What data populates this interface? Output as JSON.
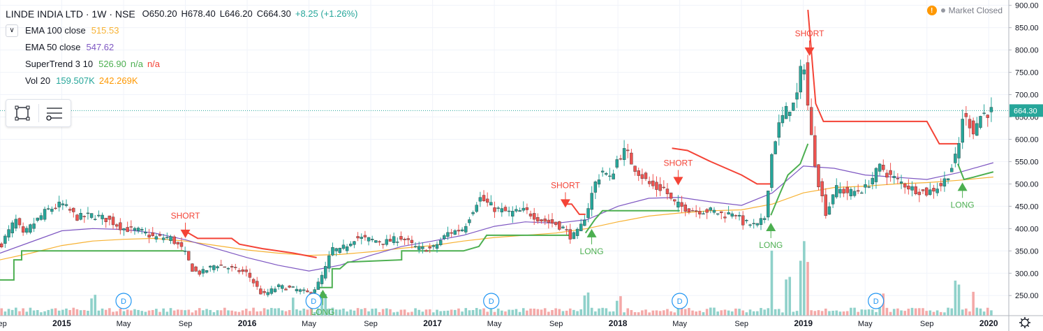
{
  "header": {
    "title": "LINDE INDIA LTD · 1W · NSE",
    "open": "O650.20",
    "high": "H678.40",
    "low": "L646.20",
    "close": "C664.30",
    "change": "+8.25 (+1.26%)",
    "market_status": "Market Closed"
  },
  "indicators": [
    {
      "label": "EMA 100 close",
      "values": [
        "515.53"
      ],
      "colors": [
        "#f7b233"
      ]
    },
    {
      "label": "EMA 50 close",
      "values": [
        "547.62"
      ],
      "colors": [
        "#7e57c2"
      ]
    },
    {
      "label": "SuperTrend 3 10",
      "values": [
        "526.90",
        "n/a",
        "n/a"
      ],
      "colors": [
        "#4caf50",
        "#4caf50",
        "#f44336"
      ]
    },
    {
      "label": "Vol 20",
      "values": [
        "159.507K",
        "242.269K"
      ],
      "colors": [
        "#26a69a",
        "#ff9800"
      ]
    }
  ],
  "colors": {
    "up": "#26a69a",
    "down": "#ef5350",
    "ema100": "#f7b233",
    "ema50": "#7e57c2",
    "st_up": "#4caf50",
    "st_down": "#f44336",
    "vol_up": "#8fd1ca",
    "vol_down": "#f4a9a8",
    "grid": "#f0f3fa"
  },
  "chart_data": {
    "type": "candlestick",
    "y_axis_ticks": [
      "900.00",
      "850.00",
      "800.00",
      "750.00",
      "700.00",
      "650.00",
      "600.00",
      "550.00",
      "500.00",
      "450.00",
      "400.00",
      "350.00",
      "300.00",
      "250.00"
    ],
    "ylim": [
      205,
      912
    ],
    "last_price_label": "664.30",
    "last_price": 664.3,
    "x_axis_labels": [
      {
        "t": 0,
        "label": "Sep"
      },
      {
        "t": 4,
        "label": "2015"
      },
      {
        "t": 8,
        "label": "May"
      },
      {
        "t": 12,
        "label": "Sep"
      },
      {
        "t": 16,
        "label": "2016"
      },
      {
        "t": 20,
        "label": "May"
      },
      {
        "t": 24,
        "label": "Sep"
      },
      {
        "t": 28,
        "label": "2017"
      },
      {
        "t": 32,
        "label": "May"
      },
      {
        "t": 36,
        "label": "Sep"
      },
      {
        "t": 40,
        "label": "2018"
      },
      {
        "t": 44,
        "label": "May"
      },
      {
        "t": 48,
        "label": "Sep"
      },
      {
        "t": 52,
        "label": "2019"
      },
      {
        "t": 56,
        "label": "May"
      },
      {
        "t": 60,
        "label": "Sep"
      },
      {
        "t": 64,
        "label": "2020"
      }
    ],
    "t_range": [
      0,
      65.3
    ],
    "price_anchors": [
      [
        0,
        360
      ],
      [
        0.5,
        390
      ],
      [
        1,
        420
      ],
      [
        1.5,
        385
      ],
      [
        2,
        405
      ],
      [
        3,
        440
      ],
      [
        4,
        455
      ],
      [
        5,
        425
      ],
      [
        6,
        430
      ],
      [
        7,
        420
      ],
      [
        8,
        400
      ],
      [
        9,
        395
      ],
      [
        10,
        380
      ],
      [
        11,
        380
      ],
      [
        11.9,
        350
      ],
      [
        12.5,
        305
      ],
      [
        13,
        300
      ],
      [
        14,
        320
      ],
      [
        15,
        310
      ],
      [
        16,
        300
      ],
      [
        17,
        250
      ],
      [
        18,
        270
      ],
      [
        19,
        265
      ],
      [
        20,
        255
      ],
      [
        20.5,
        270
      ],
      [
        21,
        305
      ],
      [
        21.5,
        355
      ],
      [
        22,
        350
      ],
      [
        23,
        380
      ],
      [
        24,
        375
      ],
      [
        25,
        370
      ],
      [
        26,
        380
      ],
      [
        27,
        355
      ],
      [
        28,
        355
      ],
      [
        29,
        390
      ],
      [
        30,
        400
      ],
      [
        31,
        470
      ],
      [
        32,
        445
      ],
      [
        33,
        435
      ],
      [
        34,
        440
      ],
      [
        35,
        420
      ],
      [
        36,
        410
      ],
      [
        36.5,
        400
      ],
      [
        37,
        380
      ],
      [
        37.5,
        395
      ],
      [
        38,
        440
      ],
      [
        38.5,
        500
      ],
      [
        39,
        530
      ],
      [
        39.5,
        510
      ],
      [
        40,
        560
      ],
      [
        40.5,
        575
      ],
      [
        41,
        540
      ],
      [
        41.5,
        520
      ],
      [
        42,
        500
      ],
      [
        42.5,
        490
      ],
      [
        43,
        490
      ],
      [
        43.5,
        460
      ],
      [
        44,
        450
      ],
      [
        45,
        440
      ],
      [
        46,
        440
      ],
      [
        47,
        430
      ],
      [
        47.5,
        440
      ],
      [
        48,
        415
      ],
      [
        49,
        405
      ],
      [
        49.5,
        425
      ],
      [
        50,
        580
      ],
      [
        50.5,
        640
      ],
      [
        51,
        670
      ],
      [
        51.5,
        680
      ],
      [
        52,
        790
      ],
      [
        52.3,
        670
      ],
      [
        52.6,
        580
      ],
      [
        53,
        500
      ],
      [
        53.5,
        430
      ],
      [
        54,
        490
      ],
      [
        55,
        480
      ],
      [
        56,
        490
      ],
      [
        57,
        540
      ],
      [
        57.5,
        520
      ],
      [
        58,
        510
      ],
      [
        59,
        490
      ],
      [
        60,
        480
      ],
      [
        61,
        500
      ],
      [
        61.5,
        530
      ],
      [
        62,
        570
      ],
      [
        62.3,
        650
      ],
      [
        62.7,
        640
      ],
      [
        63,
        620
      ],
      [
        63.5,
        655
      ],
      [
        64.3,
        664.3
      ]
    ],
    "ema100": [
      [
        0,
        330
      ],
      [
        2,
        345
      ],
      [
        4,
        362
      ],
      [
        6,
        372
      ],
      [
        8,
        376
      ],
      [
        10,
        378
      ],
      [
        12,
        372
      ],
      [
        14,
        362
      ],
      [
        16,
        352
      ],
      [
        18,
        345
      ],
      [
        20,
        340
      ],
      [
        22,
        342
      ],
      [
        24,
        348
      ],
      [
        26,
        356
      ],
      [
        28,
        362
      ],
      [
        30,
        372
      ],
      [
        32,
        380
      ],
      [
        34,
        385
      ],
      [
        36,
        390
      ],
      [
        38,
        400
      ],
      [
        40,
        415
      ],
      [
        42,
        428
      ],
      [
        44,
        435
      ],
      [
        46,
        440
      ],
      [
        48,
        442
      ],
      [
        50,
        455
      ],
      [
        52,
        480
      ],
      [
        54,
        492
      ],
      [
        56,
        495
      ],
      [
        58,
        500
      ],
      [
        60,
        503
      ],
      [
        62,
        508
      ],
      [
        64.3,
        515.5
      ]
    ],
    "ema50": [
      [
        0,
        345
      ],
      [
        2,
        370
      ],
      [
        4,
        395
      ],
      [
        6,
        400
      ],
      [
        8,
        398
      ],
      [
        10,
        390
      ],
      [
        12,
        375
      ],
      [
        14,
        355
      ],
      [
        16,
        335
      ],
      [
        18,
        318
      ],
      [
        20,
        305
      ],
      [
        22,
        318
      ],
      [
        24,
        340
      ],
      [
        26,
        360
      ],
      [
        28,
        372
      ],
      [
        30,
        385
      ],
      [
        32,
        405
      ],
      [
        34,
        415
      ],
      [
        36,
        412
      ],
      [
        38,
        420
      ],
      [
        40,
        450
      ],
      [
        42,
        468
      ],
      [
        44,
        470
      ],
      [
        46,
        460
      ],
      [
        48,
        452
      ],
      [
        50,
        480
      ],
      [
        52,
        540
      ],
      [
        54,
        535
      ],
      [
        56,
        520
      ],
      [
        58,
        515
      ],
      [
        60,
        510
      ],
      [
        62,
        525
      ],
      [
        64.3,
        547.6
      ]
    ],
    "supertrend": [
      {
        "trend": "up",
        "points": [
          [
            0,
            285
          ],
          [
            0.9,
            285
          ],
          [
            0.9,
            330
          ],
          [
            1.4,
            330
          ],
          [
            1.4,
            350
          ],
          [
            11.9,
            350
          ]
        ]
      },
      {
        "trend": "down",
        "points": [
          [
            11.9,
            390
          ],
          [
            12.2,
            390
          ],
          [
            12.8,
            378
          ],
          [
            15,
            378
          ],
          [
            15.5,
            365
          ],
          [
            17,
            355
          ],
          [
            19,
            345
          ],
          [
            20.5,
            335
          ]
        ]
      },
      {
        "trend": "up",
        "points": [
          [
            20.5,
            268
          ],
          [
            21.5,
            268
          ],
          [
            21.5,
            310
          ],
          [
            22,
            310
          ],
          [
            22.5,
            325
          ],
          [
            26,
            330
          ],
          [
            26,
            350
          ],
          [
            30,
            350
          ],
          [
            31,
            360
          ],
          [
            31.5,
            385
          ],
          [
            37,
            385
          ]
        ]
      },
      {
        "trend": "down",
        "points": [
          [
            36.5,
            455
          ],
          [
            37,
            455
          ],
          [
            37.5,
            432
          ],
          [
            37.9,
            432
          ]
        ]
      },
      {
        "trend": "up",
        "points": [
          [
            37.9,
            390
          ],
          [
            38.5,
            420
          ],
          [
            39,
            440
          ],
          [
            44,
            440
          ]
        ]
      },
      {
        "trend": "down",
        "points": [
          [
            43.5,
            580
          ],
          [
            44.5,
            575
          ],
          [
            46,
            550
          ],
          [
            48,
            520
          ],
          [
            49,
            500
          ],
          [
            50,
            500
          ]
        ]
      },
      {
        "trend": "up",
        "points": [
          [
            49.9,
            430
          ],
          [
            50.5,
            480
          ],
          [
            51,
            520
          ],
          [
            51.8,
            545
          ],
          [
            52.3,
            590
          ],
          [
            52.3,
            590
          ]
        ]
      },
      {
        "trend": "down",
        "points": [
          [
            52.3,
            890
          ],
          [
            52.8,
            680
          ],
          [
            53.3,
            640
          ],
          [
            60,
            640
          ],
          [
            60.8,
            590
          ],
          [
            62,
            590
          ]
        ]
      },
      {
        "trend": "up",
        "points": [
          [
            62,
            545
          ],
          [
            62.4,
            510
          ],
          [
            63,
            515
          ],
          [
            64.3,
            527
          ]
        ]
      }
    ],
    "signals": [
      {
        "type": "SHORT",
        "t": 12,
        "price": 382
      },
      {
        "type": "LONG",
        "t": 20.9,
        "price": 260
      },
      {
        "type": "SHORT",
        "t": 36.6,
        "price": 450
      },
      {
        "type": "LONG",
        "t": 38.3,
        "price": 396
      },
      {
        "type": "SHORT",
        "t": 43.9,
        "price": 500
      },
      {
        "type": "LONG",
        "t": 49.9,
        "price": 410
      },
      {
        "type": "SHORT",
        "t": 52.4,
        "price": 790
      },
      {
        "type": "LONG",
        "t": 62.3,
        "price": 500
      }
    ],
    "volume_spikes": [
      [
        6,
        0.35
      ],
      [
        19,
        0.25
      ],
      [
        21,
        0.35
      ],
      [
        38,
        0.3
      ],
      [
        40,
        0.25
      ],
      [
        50,
        0.9
      ],
      [
        51,
        0.5
      ],
      [
        52,
        1.0
      ],
      [
        52.3,
        0.7
      ],
      [
        57,
        0.3
      ],
      [
        62,
        0.45
      ],
      [
        63,
        0.3
      ]
    ],
    "dividend_markers": [
      8,
      20.3,
      31.8,
      44,
      56.7
    ]
  }
}
